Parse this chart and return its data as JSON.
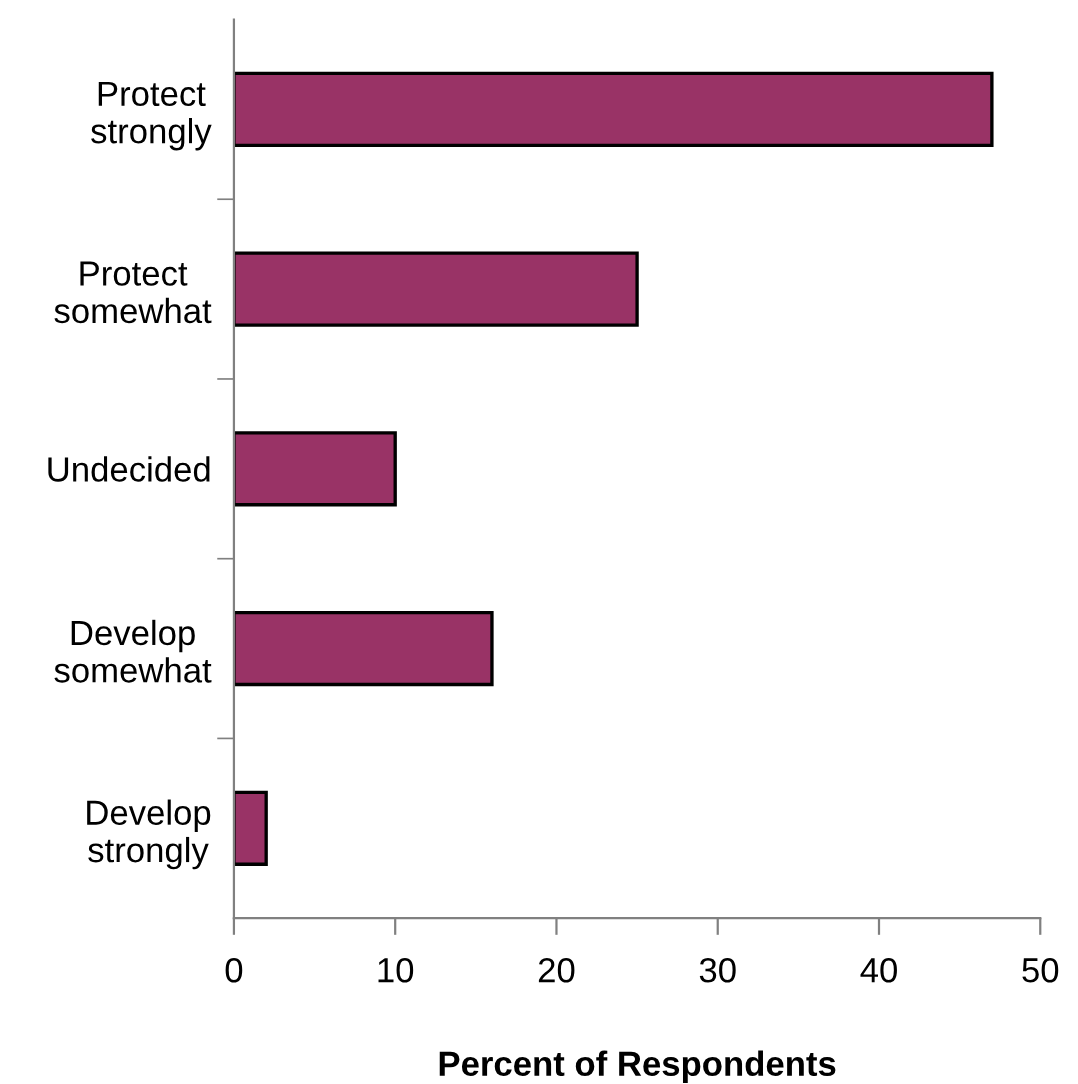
{
  "chart_data": {
    "type": "bar",
    "orientation": "horizontal",
    "xlabel": "Percent of Respondents",
    "categories": [
      "Protect strongly",
      "Protect somewhat",
      "Undecided",
      "Develop somewhat",
      "Develop strongly"
    ],
    "values": [
      47,
      25,
      10,
      16,
      2
    ],
    "color": "#993366",
    "xlim": [
      0,
      50
    ],
    "xticks": [
      0,
      10,
      20,
      30,
      40,
      50
    ],
    "grid": false,
    "legend": false
  }
}
